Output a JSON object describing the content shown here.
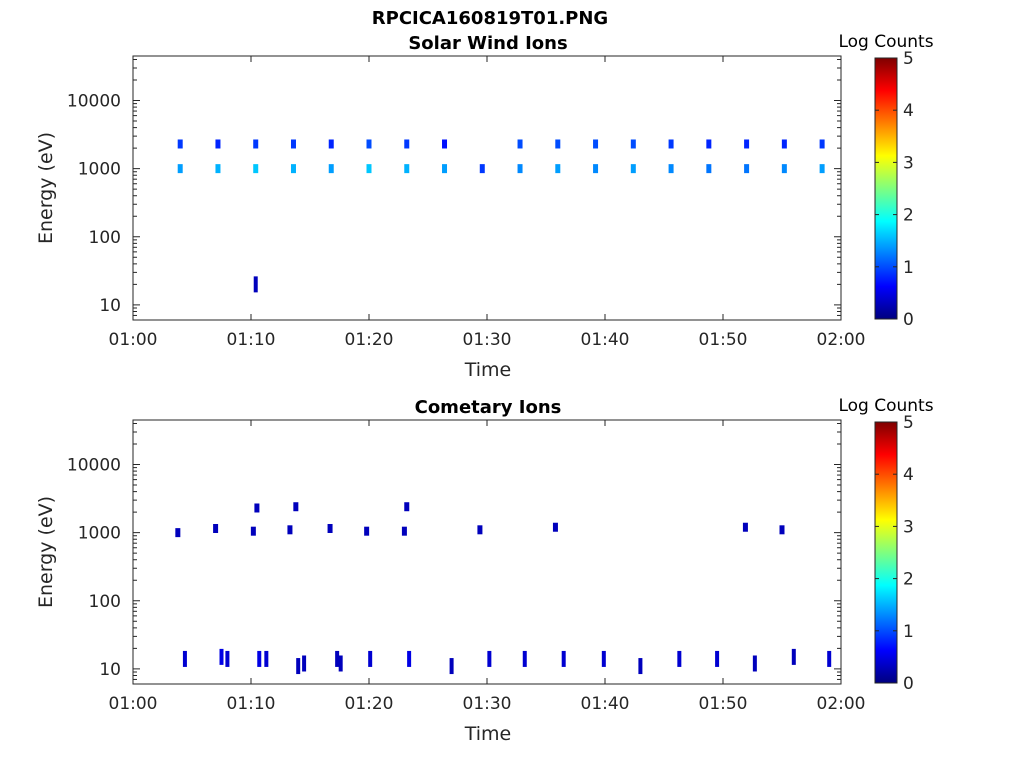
{
  "figure": {
    "title": "RPCICA160819T01.PNG"
  },
  "colorbar": {
    "label": "Log Counts",
    "ticks": [
      "0",
      "1",
      "2",
      "3",
      "4",
      "5"
    ],
    "colors": [
      "#00007f",
      "#0000ff",
      "#007fff",
      "#00ffff",
      "#7fff7f",
      "#ffff00",
      "#ff7f00",
      "#ff0000",
      "#7f0000"
    ]
  },
  "chart_data": [
    {
      "type": "heatmap",
      "title": "Solar Wind Ions",
      "xlabel": "Time",
      "ylabel": "Energy (eV)",
      "yscale": "log",
      "xlim": [
        "01:00",
        "02:00"
      ],
      "ylim": [
        6,
        45000
      ],
      "x_ticks": [
        "01:00",
        "01:10",
        "01:20",
        "01:30",
        "01:40",
        "01:50",
        "02:00"
      ],
      "y_ticks": [
        "10",
        "100",
        "1000",
        "10000"
      ],
      "clim": [
        0,
        5
      ],
      "bursts": [
        {
          "t": 4.0,
          "e": 1000,
          "v": 1.4
        },
        {
          "t": 4.0,
          "e": 2300,
          "v": 0.9
        },
        {
          "t": 7.2,
          "e": 1000,
          "v": 1.5
        },
        {
          "t": 7.2,
          "e": 2300,
          "v": 0.8
        },
        {
          "t": 10.4,
          "e": 1000,
          "v": 1.6
        },
        {
          "t": 10.4,
          "e": 2300,
          "v": 0.9
        },
        {
          "t": 10.4,
          "e": 20,
          "v": 0.3
        },
        {
          "t": 13.6,
          "e": 1000,
          "v": 1.5
        },
        {
          "t": 13.6,
          "e": 2300,
          "v": 0.9
        },
        {
          "t": 16.8,
          "e": 1000,
          "v": 1.4
        },
        {
          "t": 16.8,
          "e": 2300,
          "v": 0.8
        },
        {
          "t": 20.0,
          "e": 1000,
          "v": 1.6
        },
        {
          "t": 20.0,
          "e": 2300,
          "v": 1.0
        },
        {
          "t": 23.2,
          "e": 1000,
          "v": 1.5
        },
        {
          "t": 23.2,
          "e": 2300,
          "v": 0.9
        },
        {
          "t": 26.4,
          "e": 1000,
          "v": 1.4
        },
        {
          "t": 26.4,
          "e": 2300,
          "v": 0.7
        },
        {
          "t": 29.6,
          "e": 1000,
          "v": 0.9
        },
        {
          "t": 32.8,
          "e": 1000,
          "v": 1.3
        },
        {
          "t": 32.8,
          "e": 2300,
          "v": 1.0
        },
        {
          "t": 36.0,
          "e": 1000,
          "v": 1.4
        },
        {
          "t": 36.0,
          "e": 2300,
          "v": 1.0
        },
        {
          "t": 39.2,
          "e": 1000,
          "v": 1.3
        },
        {
          "t": 39.2,
          "e": 2300,
          "v": 1.0
        },
        {
          "t": 42.4,
          "e": 1000,
          "v": 1.4
        },
        {
          "t": 42.4,
          "e": 2300,
          "v": 1.0
        },
        {
          "t": 45.6,
          "e": 1000,
          "v": 1.3
        },
        {
          "t": 45.6,
          "e": 2300,
          "v": 0.9
        },
        {
          "t": 48.8,
          "e": 1000,
          "v": 1.2
        },
        {
          "t": 48.8,
          "e": 2300,
          "v": 0.8
        },
        {
          "t": 52.0,
          "e": 1000,
          "v": 1.2
        },
        {
          "t": 52.0,
          "e": 2300,
          "v": 0.8
        },
        {
          "t": 55.2,
          "e": 1000,
          "v": 1.3
        },
        {
          "t": 55.2,
          "e": 2300,
          "v": 0.8
        },
        {
          "t": 58.4,
          "e": 1000,
          "v": 1.4
        },
        {
          "t": 58.4,
          "e": 2300,
          "v": 0.9
        }
      ]
    },
    {
      "type": "heatmap",
      "title": "Cometary Ions",
      "xlabel": "Time",
      "ylabel": "Energy (eV)",
      "yscale": "log",
      "xlim": [
        "01:00",
        "02:00"
      ],
      "ylim": [
        6,
        45000
      ],
      "x_ticks": [
        "01:00",
        "01:10",
        "01:20",
        "01:30",
        "01:40",
        "01:50",
        "02:00"
      ],
      "y_ticks": [
        "10",
        "100",
        "1000",
        "10000"
      ],
      "clim": [
        0,
        5
      ],
      "bursts": [
        {
          "t": 3.8,
          "e": 1000,
          "v": 0.3
        },
        {
          "t": 7.0,
          "e": 1150,
          "v": 0.3
        },
        {
          "t": 10.2,
          "e": 1050,
          "v": 0.3
        },
        {
          "t": 10.5,
          "e": 2300,
          "v": 0.3
        },
        {
          "t": 13.3,
          "e": 1100,
          "v": 0.3
        },
        {
          "t": 13.8,
          "e": 2400,
          "v": 0.3
        },
        {
          "t": 16.7,
          "e": 1150,
          "v": 0.3
        },
        {
          "t": 19.8,
          "e": 1050,
          "v": 0.3
        },
        {
          "t": 23.0,
          "e": 1050,
          "v": 0.3
        },
        {
          "t": 23.2,
          "e": 2400,
          "v": 0.3
        },
        {
          "t": 29.4,
          "e": 1100,
          "v": 0.3
        },
        {
          "t": 35.8,
          "e": 1200,
          "v": 0.3
        },
        {
          "t": 51.9,
          "e": 1200,
          "v": 0.3
        },
        {
          "t": 55.0,
          "e": 1100,
          "v": 0.3
        },
        {
          "t": 4.4,
          "e": 14,
          "v": 0.4
        },
        {
          "t": 7.5,
          "e": 15,
          "v": 0.5
        },
        {
          "t": 8.0,
          "e": 14,
          "v": 0.4
        },
        {
          "t": 10.7,
          "e": 14,
          "v": 0.5
        },
        {
          "t": 11.3,
          "e": 14,
          "v": 0.4
        },
        {
          "t": 14.0,
          "e": 11,
          "v": 0.3
        },
        {
          "t": 14.5,
          "e": 12,
          "v": 0.3
        },
        {
          "t": 17.3,
          "e": 14,
          "v": 0.3
        },
        {
          "t": 17.6,
          "e": 12,
          "v": 0.3
        },
        {
          "t": 20.1,
          "e": 14,
          "v": 0.4
        },
        {
          "t": 23.4,
          "e": 14,
          "v": 0.5
        },
        {
          "t": 27.0,
          "e": 11,
          "v": 0.3
        },
        {
          "t": 30.2,
          "e": 14,
          "v": 0.4
        },
        {
          "t": 33.2,
          "e": 14,
          "v": 0.4
        },
        {
          "t": 36.5,
          "e": 14,
          "v": 0.4
        },
        {
          "t": 39.9,
          "e": 14,
          "v": 0.4
        },
        {
          "t": 43.0,
          "e": 11,
          "v": 0.3
        },
        {
          "t": 46.3,
          "e": 14,
          "v": 0.4
        },
        {
          "t": 49.5,
          "e": 14,
          "v": 0.4
        },
        {
          "t": 52.7,
          "e": 12,
          "v": 0.3
        },
        {
          "t": 56.0,
          "e": 15,
          "v": 0.3
        },
        {
          "t": 59.0,
          "e": 14,
          "v": 0.4
        }
      ]
    }
  ]
}
